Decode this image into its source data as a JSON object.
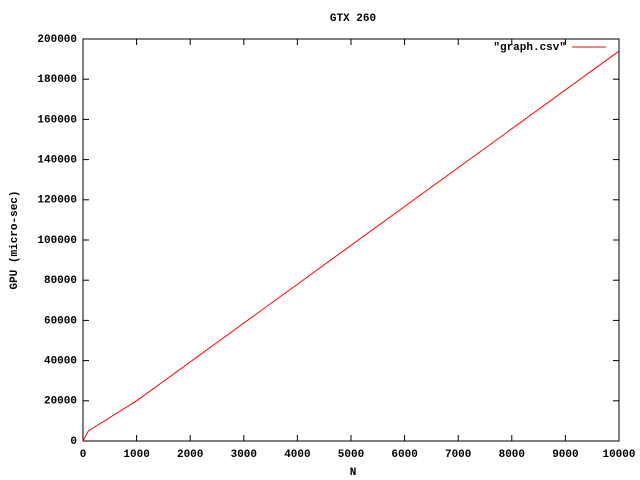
{
  "chart_data": {
    "type": "line",
    "title": "GTX 260",
    "x_label": "N",
    "y_label": "GPU (micro-sec)",
    "x": [
      0,
      100,
      1000,
      10000
    ],
    "series": [
      {
        "name": "\"graph.csv\"",
        "color": "#ff0000",
        "values": [
          0,
          5000,
          20000,
          194000
        ]
      }
    ],
    "xlim": [
      0,
      10000
    ],
    "xticks": [
      0,
      1000,
      2000,
      3000,
      4000,
      5000,
      6000,
      7000,
      8000,
      9000,
      10000
    ],
    "ylim": [
      0,
      200000
    ],
    "yticks": [
      0,
      20000,
      40000,
      60000,
      80000,
      100000,
      120000,
      140000,
      160000,
      180000,
      200000
    ],
    "legend": "top-right",
    "grid": false
  }
}
